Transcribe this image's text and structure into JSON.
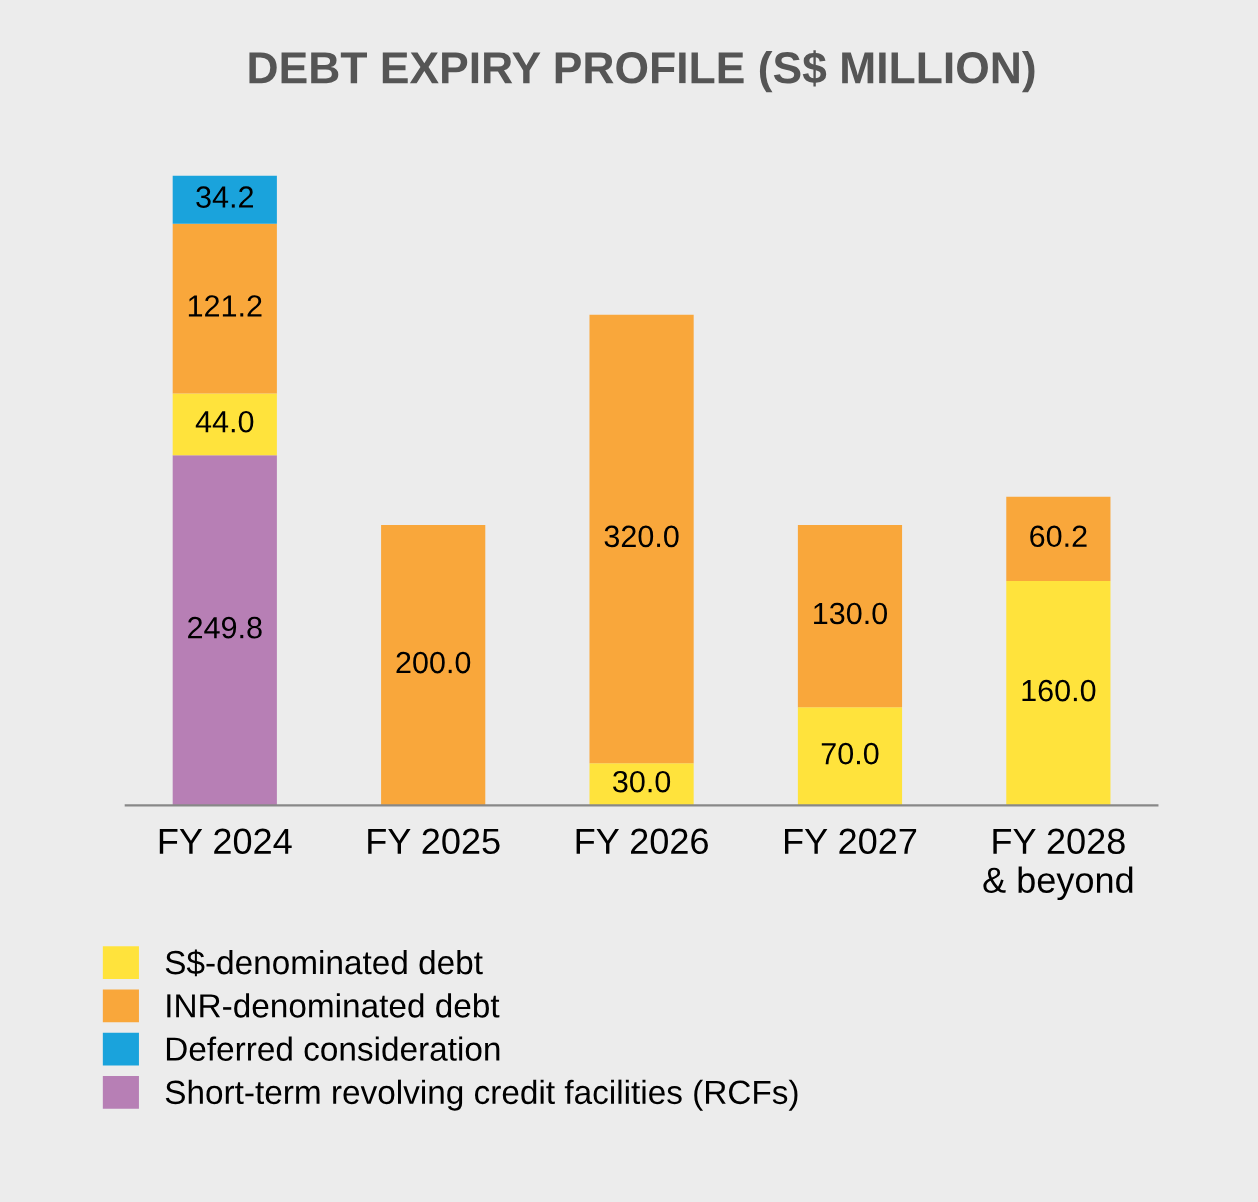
{
  "chart_data": {
    "type": "bar",
    "title": "DEBT EXPIRY PROFILE (S$ MILLION)",
    "categories": [
      "FY 2024",
      "FY 2025",
      "FY 2026",
      "FY 2027",
      "FY 2028\n& beyond"
    ],
    "stacked": true,
    "legend": "bottom",
    "grid": false,
    "series": [
      {
        "name": "Short-term revolving credit facilities (RCFs)",
        "color": "#b77fb5",
        "values": [
          249.8,
          null,
          null,
          null,
          null
        ],
        "value_labels": [
          "249.8",
          null,
          null,
          null,
          null
        ]
      },
      {
        "name": "S$-denominated debt",
        "color": "#ffe33c",
        "values": [
          44.0,
          null,
          30.0,
          70.0,
          160.0
        ],
        "value_labels": [
          "44.0",
          null,
          "30.0",
          "70.0",
          "160.0"
        ]
      },
      {
        "name": "INR-denominated debt",
        "color": "#f9a73b",
        "values": [
          121.2,
          200.0,
          320.0,
          130.0,
          60.2
        ],
        "value_labels": [
          "121.2",
          "200.0",
          "320.0",
          "130.0",
          "60.2"
        ]
      },
      {
        "name": "Deferred consideration",
        "color": "#1aa3dc",
        "values": [
          34.2,
          null,
          null,
          null,
          null
        ],
        "value_labels": [
          "34.2",
          null,
          null,
          null,
          null
        ]
      }
    ]
  }
}
